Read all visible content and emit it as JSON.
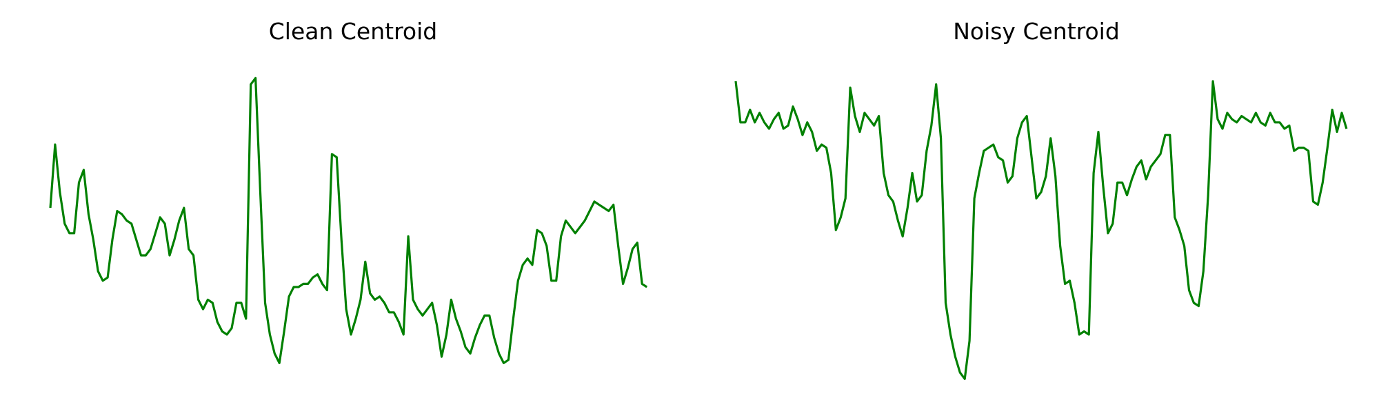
{
  "colors": {
    "line": "#008000",
    "background": "#ffffff",
    "title": "#000000"
  },
  "chart_data": [
    {
      "type": "line",
      "title": "Clean Centroid",
      "xlabel": "",
      "ylabel": "",
      "axes_visible": false,
      "grid": false,
      "legend": "none",
      "xlim": [
        0,
        127
      ],
      "ylim": [
        0,
        1
      ],
      "series": [
        {
          "color": "#008000",
          "values": [
            0.55,
            0.75,
            0.6,
            0.5,
            0.47,
            0.47,
            0.63,
            0.67,
            0.53,
            0.45,
            0.35,
            0.32,
            0.33,
            0.45,
            0.54,
            0.53,
            0.51,
            0.5,
            0.45,
            0.4,
            0.4,
            0.42,
            0.47,
            0.52,
            0.5,
            0.4,
            0.45,
            0.51,
            0.55,
            0.42,
            0.4,
            0.26,
            0.23,
            0.26,
            0.25,
            0.19,
            0.16,
            0.15,
            0.17,
            0.25,
            0.25,
            0.2,
            0.94,
            0.96,
            0.6,
            0.25,
            0.15,
            0.09,
            0.06,
            0.16,
            0.27,
            0.3,
            0.3,
            0.31,
            0.31,
            0.33,
            0.34,
            0.31,
            0.29,
            0.72,
            0.71,
            0.45,
            0.23,
            0.15,
            0.2,
            0.26,
            0.38,
            0.28,
            0.26,
            0.27,
            0.25,
            0.22,
            0.22,
            0.19,
            0.15,
            0.46,
            0.26,
            0.23,
            0.21,
            0.23,
            0.25,
            0.18,
            0.08,
            0.15,
            0.26,
            0.2,
            0.16,
            0.11,
            0.09,
            0.14,
            0.18,
            0.21,
            0.21,
            0.14,
            0.09,
            0.06,
            0.07,
            0.2,
            0.32,
            0.37,
            0.39,
            0.37,
            0.48,
            0.47,
            0.43,
            0.32,
            0.32,
            0.46,
            0.51,
            0.49,
            0.47,
            0.49,
            0.51,
            0.54,
            0.57,
            0.56,
            0.55,
            0.54,
            0.56,
            0.43,
            0.31,
            0.36,
            0.42,
            0.44,
            0.31,
            0.3
          ]
        }
      ]
    },
    {
      "type": "line",
      "title": "Noisy Centroid",
      "xlabel": "",
      "ylabel": "",
      "axes_visible": false,
      "grid": false,
      "legend": "none",
      "xlim": [
        0,
        127
      ],
      "ylim": [
        0,
        1
      ],
      "series": [
        {
          "color": "#008000",
          "values": [
            0.95,
            0.82,
            0.82,
            0.86,
            0.82,
            0.85,
            0.82,
            0.8,
            0.83,
            0.85,
            0.8,
            0.81,
            0.87,
            0.83,
            0.78,
            0.82,
            0.79,
            0.73,
            0.75,
            0.74,
            0.66,
            0.48,
            0.52,
            0.58,
            0.93,
            0.84,
            0.79,
            0.85,
            0.83,
            0.81,
            0.84,
            0.66,
            0.59,
            0.57,
            0.51,
            0.46,
            0.55,
            0.66,
            0.57,
            0.59,
            0.73,
            0.81,
            0.94,
            0.77,
            0.25,
            0.15,
            0.08,
            0.03,
            0.01,
            0.13,
            0.58,
            0.66,
            0.73,
            0.74,
            0.75,
            0.71,
            0.7,
            0.63,
            0.65,
            0.77,
            0.82,
            0.84,
            0.71,
            0.58,
            0.6,
            0.65,
            0.77,
            0.65,
            0.43,
            0.31,
            0.32,
            0.25,
            0.15,
            0.16,
            0.15,
            0.66,
            0.79,
            0.62,
            0.47,
            0.5,
            0.63,
            0.63,
            0.59,
            0.64,
            0.68,
            0.7,
            0.64,
            0.68,
            0.7,
            0.72,
            0.78,
            0.78,
            0.52,
            0.48,
            0.43,
            0.29,
            0.25,
            0.24,
            0.35,
            0.59,
            0.95,
            0.83,
            0.8,
            0.85,
            0.83,
            0.82,
            0.84,
            0.83,
            0.82,
            0.85,
            0.82,
            0.81,
            0.85,
            0.82,
            0.82,
            0.8,
            0.81,
            0.73,
            0.74,
            0.74,
            0.73,
            0.57,
            0.56,
            0.63,
            0.74,
            0.86,
            0.79,
            0.85,
            0.8
          ]
        }
      ]
    }
  ]
}
